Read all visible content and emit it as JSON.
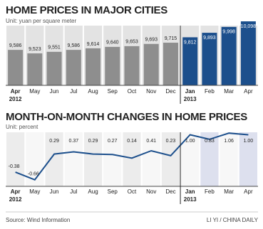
{
  "chart_data": [
    {
      "type": "bar",
      "title": "HOME PRICES IN MAJOR CITIES",
      "subtitle": "Unit: yuan per square meter",
      "categories": [
        "Apr",
        "May",
        "Jun",
        "Jul",
        "Aug",
        "Sep",
        "Oct",
        "Nov",
        "Dec",
        "Jan",
        "Feb",
        "Mar",
        "Apr"
      ],
      "year_labels": [
        "2012",
        null,
        null,
        null,
        null,
        null,
        null,
        null,
        null,
        "2013",
        null,
        null,
        null
      ],
      "values": [
        9586,
        9523,
        9551,
        9586,
        9614,
        9640,
        9653,
        9693,
        9715,
        9812,
        9893,
        9998,
        10098
      ],
      "value_labels": [
        "9,586",
        "9,523",
        "9,551",
        "9,586",
        "9,614",
        "9,640",
        "9,653",
        "9,693",
        "9,715",
        "9,812",
        "9,893",
        "9,998",
        "10,098"
      ],
      "colors": [
        "#8e8e8e",
        "#8e8e8e",
        "#8e8e8e",
        "#8e8e8e",
        "#8e8e8e",
        "#8e8e8e",
        "#8e8e8e",
        "#8e8e8e",
        "#8e8e8e",
        "#1c4f8c",
        "#1c4f8c",
        "#1c4f8c",
        "#1c4f8c"
      ],
      "ylim": [
        8950,
        10200
      ]
    },
    {
      "type": "line",
      "title": "MONTH-ON-MONTH CHANGES IN HOME PRICES",
      "subtitle": "Unit: percent",
      "categories": [
        "Apr",
        "May",
        "Jun",
        "Jul",
        "Aug",
        "Sep",
        "Oct",
        "Nov",
        "Dec",
        "Jan",
        "Feb",
        "Mar",
        "Apr"
      ],
      "year_labels": [
        "2012",
        null,
        null,
        null,
        null,
        null,
        null,
        null,
        null,
        "2013",
        null,
        null,
        null
      ],
      "values": [
        -0.38,
        -0.66,
        0.29,
        0.37,
        0.29,
        0.27,
        0.14,
        0.41,
        0.23,
        1.0,
        0.83,
        1.06,
        1.0
      ],
      "value_labels": [
        "-0.38",
        "-0.66",
        "0.29",
        "0.37",
        "0.29",
        "0.27",
        "0.14",
        "0.41",
        "0.23",
        "1.00",
        "0.83",
        "1.06",
        "1.00"
      ],
      "color": "#1c4f8c",
      "ylim": [
        -0.9,
        1.3
      ]
    }
  ],
  "footer": {
    "source": "Source: Wind Information",
    "credit": "LI YI / CHINA DAILY"
  }
}
